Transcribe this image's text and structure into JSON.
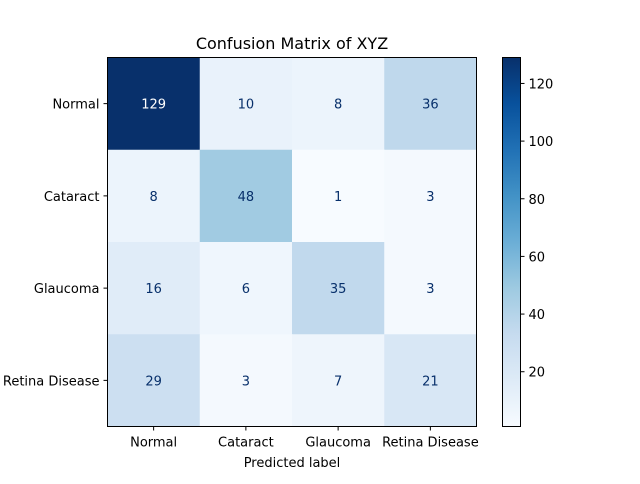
{
  "chart_data": {
    "type": "heatmap",
    "title": "Confusion Matrix of XYZ",
    "xlabel": "Predicted label",
    "ylabel": "",
    "x_categories": [
      "Normal",
      "Cataract",
      "Glaucoma",
      "Retina Disease"
    ],
    "y_categories": [
      "Normal",
      "Cataract",
      "Glaucoma",
      "Retina Disease"
    ],
    "values": [
      [
        129,
        10,
        8,
        36
      ],
      [
        8,
        48,
        1,
        3
      ],
      [
        16,
        6,
        35,
        3
      ],
      [
        29,
        3,
        7,
        21
      ]
    ],
    "colormap": "Blues",
    "color_range": [
      1,
      129
    ],
    "colorbar_ticks": [
      20,
      40,
      60,
      80,
      100,
      120
    ],
    "grid": false
  }
}
